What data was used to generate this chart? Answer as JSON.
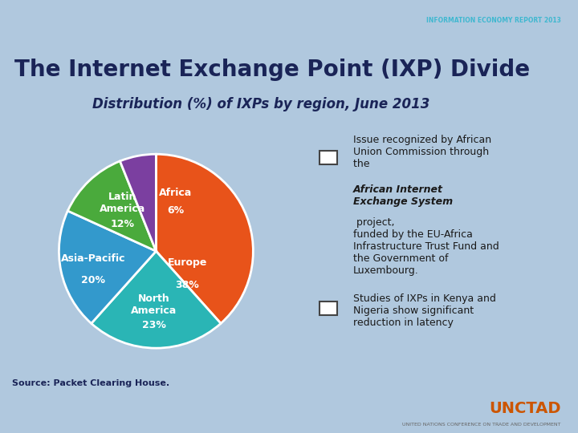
{
  "title": "The Internet Exchange Point (IXP) Divide",
  "subtitle": "Distribution (%) of IXPs by region, June 2013",
  "source": "Source: Packet Clearing House.",
  "pie_labels": [
    "Europe",
    "North\nAmerica",
    "Asia-Pacific",
    "Latin\nAmerica",
    "Africa"
  ],
  "pie_values": [
    38,
    23,
    20,
    12,
    6
  ],
  "pie_pct_labels": [
    "38%",
    "23%",
    "20%",
    "12%",
    "6%"
  ],
  "pie_colors": [
    "#e8531a",
    "#2ab5b5",
    "#3399cc",
    "#4aaa3c",
    "#7b3fa0"
  ],
  "bullet1_part1": "Issue recognized by African\nUnion Commission through\nthe ",
  "bullet1_italic": "African Internet\nExchange System",
  "bullet1_part2": " project,\nfunded by the EU-Africa\nInfrastructure Trust Fund and\nthe Government of\nLuxembourg.",
  "bullet2": "Studies of IXPs in Kenya and\nNigeria show significant\nreduction in latency",
  "bg_main": "#dde8f0",
  "bg_right_panel": "#cfdce9",
  "bg_header": "#c8d8e8",
  "title_color": "#1a2457",
  "subtitle_color": "#1a2457",
  "source_color": "#1a2457",
  "text_color": "#1a1a1a",
  "top_bar_color": "#1a3050",
  "bottom_bar_color": "#e8eef4",
  "unctad_color": "#cc5500",
  "info_report_color": "#40b8d0",
  "label_color": "#ffffff",
  "label_fontsize": 9,
  "title_fontsize": 20,
  "subtitle_fontsize": 12,
  "bullet_fontsize": 9
}
